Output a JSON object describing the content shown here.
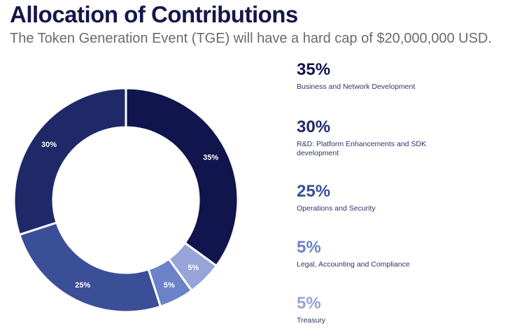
{
  "header": {
    "title": "Allocation of Contributions",
    "subtitle": "The Token Generation Event (TGE) will have a hard cap of $20,000,000 USD."
  },
  "chart_data": {
    "type": "pie",
    "variant": "donut",
    "title": "Allocation of Contributions",
    "subtitle": "The Token Generation Event (TGE) will have a hard cap of $20,000,000 USD.",
    "unit": "%",
    "direction": "clockwise-from-top",
    "slices": [
      {
        "label": "Business and Network Development",
        "value": 35,
        "display": "35%",
        "color": "#10154d"
      },
      {
        "label": "Treasury",
        "value": 5,
        "display": "5%",
        "color": "#97a4d8"
      },
      {
        "label": "Legal, Accounting and Compliance",
        "value": 5,
        "display": "5%",
        "color": "#6b82c8"
      },
      {
        "label": "Operations  and Security",
        "value": 25,
        "display": "25%",
        "color": "#3b4f98"
      },
      {
        "label": "R&D: Platform Enhancements and SDK development",
        "value": 30,
        "display": "30%",
        "color": "#1f2968"
      }
    ],
    "legend": {
      "placement": "right",
      "items": [
        {
          "pct": "35%",
          "label": "Business and Network Development",
          "color": "#10154d"
        },
        {
          "pct": "30%",
          "label": "R&D: Platform Enhancements and SDK development",
          "color": "#1f2968"
        },
        {
          "pct": "25%",
          "label": "Operations  and Security",
          "color": "#3b4f98"
        },
        {
          "pct": "5%",
          "label": "Legal, Accounting and Compliance",
          "color": "#6b82c8"
        },
        {
          "pct": "5%",
          "label": "Treasury",
          "color": "#97a4d8"
        }
      ]
    }
  }
}
